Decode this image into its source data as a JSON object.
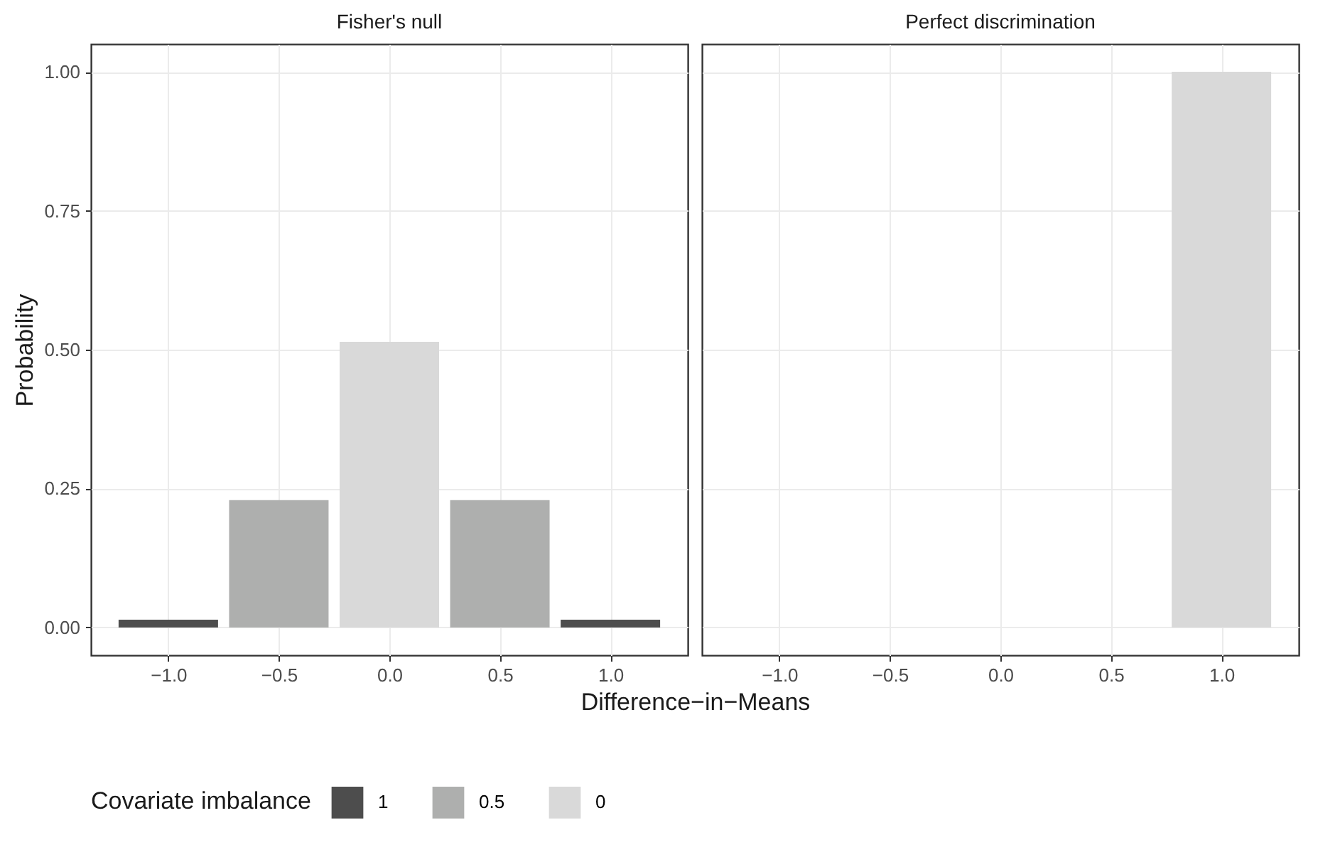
{
  "chart_data": [
    {
      "type": "bar",
      "title": "Fisher's null",
      "xlabel": "Difference−in−Means",
      "ylabel": "Probability",
      "legend_title": "Covariate imbalance",
      "legend": "bottom",
      "grid": true,
      "xlim": [
        -1.35,
        1.35
      ],
      "xticks": [
        {
          "value": -1,
          "label": "−1.0"
        },
        {
          "value": -0.5,
          "label": "−0.5"
        },
        {
          "value": 0,
          "label": "0.0"
        },
        {
          "value": 0.5,
          "label": "0.5"
        },
        {
          "value": 1,
          "label": "1.0"
        }
      ],
      "ylim": [
        -0.05,
        1.05
      ],
      "yticks": [
        {
          "value": 0,
          "label": "0.00"
        },
        {
          "value": 0.25,
          "label": "0.25"
        },
        {
          "value": 0.5,
          "label": "0.50"
        },
        {
          "value": 0.75,
          "label": "0.75"
        },
        {
          "value": 1,
          "label": "1.00"
        }
      ],
      "series": [
        {
          "name": "1",
          "color": "#4d4d4d",
          "x": [
            -1,
            1
          ],
          "values": [
            0.014,
            0.014
          ]
        },
        {
          "name": "0.5",
          "color": "#aeafae",
          "x": [
            -0.5,
            0.5
          ],
          "values": [
            0.229,
            0.229
          ]
        },
        {
          "name": "0",
          "color": "#d9d9d9",
          "x": [
            0
          ],
          "values": [
            0.514
          ]
        }
      ]
    },
    {
      "type": "bar",
      "title": "Perfect discrimination",
      "grid": true,
      "tick_labels": "x",
      "xlim": [
        -1.35,
        1.35
      ],
      "xticks": [
        {
          "value": -1,
          "label": "−1.0"
        },
        {
          "value": -0.5,
          "label": "−0.5"
        },
        {
          "value": 0,
          "label": "0.0"
        },
        {
          "value": 0.5,
          "label": "0.5"
        },
        {
          "value": 1,
          "label": "1.0"
        }
      ],
      "ylim": [
        -0.05,
        1.05
      ],
      "yticks": [
        0,
        0.25,
        0.5,
        0.75,
        1
      ],
      "series": [
        {
          "name": "0",
          "color": "#d9d9d9",
          "x": [
            1
          ],
          "values": [
            1
          ]
        }
      ]
    }
  ]
}
